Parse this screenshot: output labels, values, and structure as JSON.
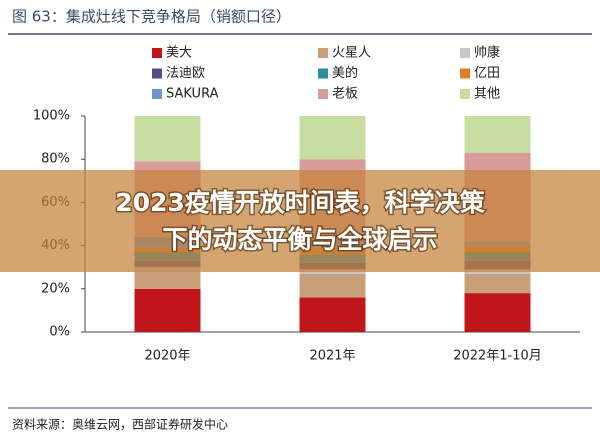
{
  "header": {
    "title": "图 63：集成灶线下竞争格局（销额口径）"
  },
  "chart_data": {
    "type": "stacked_bar",
    "categories": [
      "2020年",
      "2021年",
      "2022年1-10月"
    ],
    "series": [
      {
        "name": "美大",
        "color": "#c0161b",
        "values": [
          20,
          16,
          18
        ]
      },
      {
        "name": "火星人",
        "color": "#c9a07a",
        "values": [
          8,
          11,
          9
        ]
      },
      {
        "name": "帅康",
        "color": "#c8c8c8",
        "values": [
          2,
          2,
          2
        ]
      },
      {
        "name": "法迪欧",
        "color": "#5b4a8b",
        "values": [
          3,
          3,
          4
        ]
      },
      {
        "name": "美的",
        "color": "#2e8fa3",
        "values": [
          4,
          4,
          4
        ]
      },
      {
        "name": "亿田",
        "color": "#e07b2a",
        "values": [
          2,
          3,
          3
        ]
      },
      {
        "name": "SAKURA",
        "color": "#6f95d0",
        "values": [
          5,
          4,
          2
        ]
      },
      {
        "name": "老板",
        "color": "#d99a9a",
        "values": [
          35,
          37,
          41
        ]
      },
      {
        "name": "其他",
        "color": "#c6dca0",
        "values": [
          21,
          20,
          17
        ]
      }
    ],
    "ylim": [
      0,
      100
    ],
    "yticks": [
      {
        "value": 0,
        "label": "0%"
      },
      {
        "value": 20,
        "label": "20%"
      },
      {
        "value": 40,
        "label": "40%"
      },
      {
        "value": 60,
        "label": "60%"
      },
      {
        "value": 80,
        "label": "80%"
      },
      {
        "value": 100,
        "label": "100%"
      }
    ],
    "legend": "top"
  },
  "overlay": {
    "lines": [
      "2023疫情开放时间表，科学决策",
      "下的动态平衡与全球启示"
    ]
  },
  "footer": {
    "source": "资料来源：奥维云网，西部证券研发中心"
  }
}
